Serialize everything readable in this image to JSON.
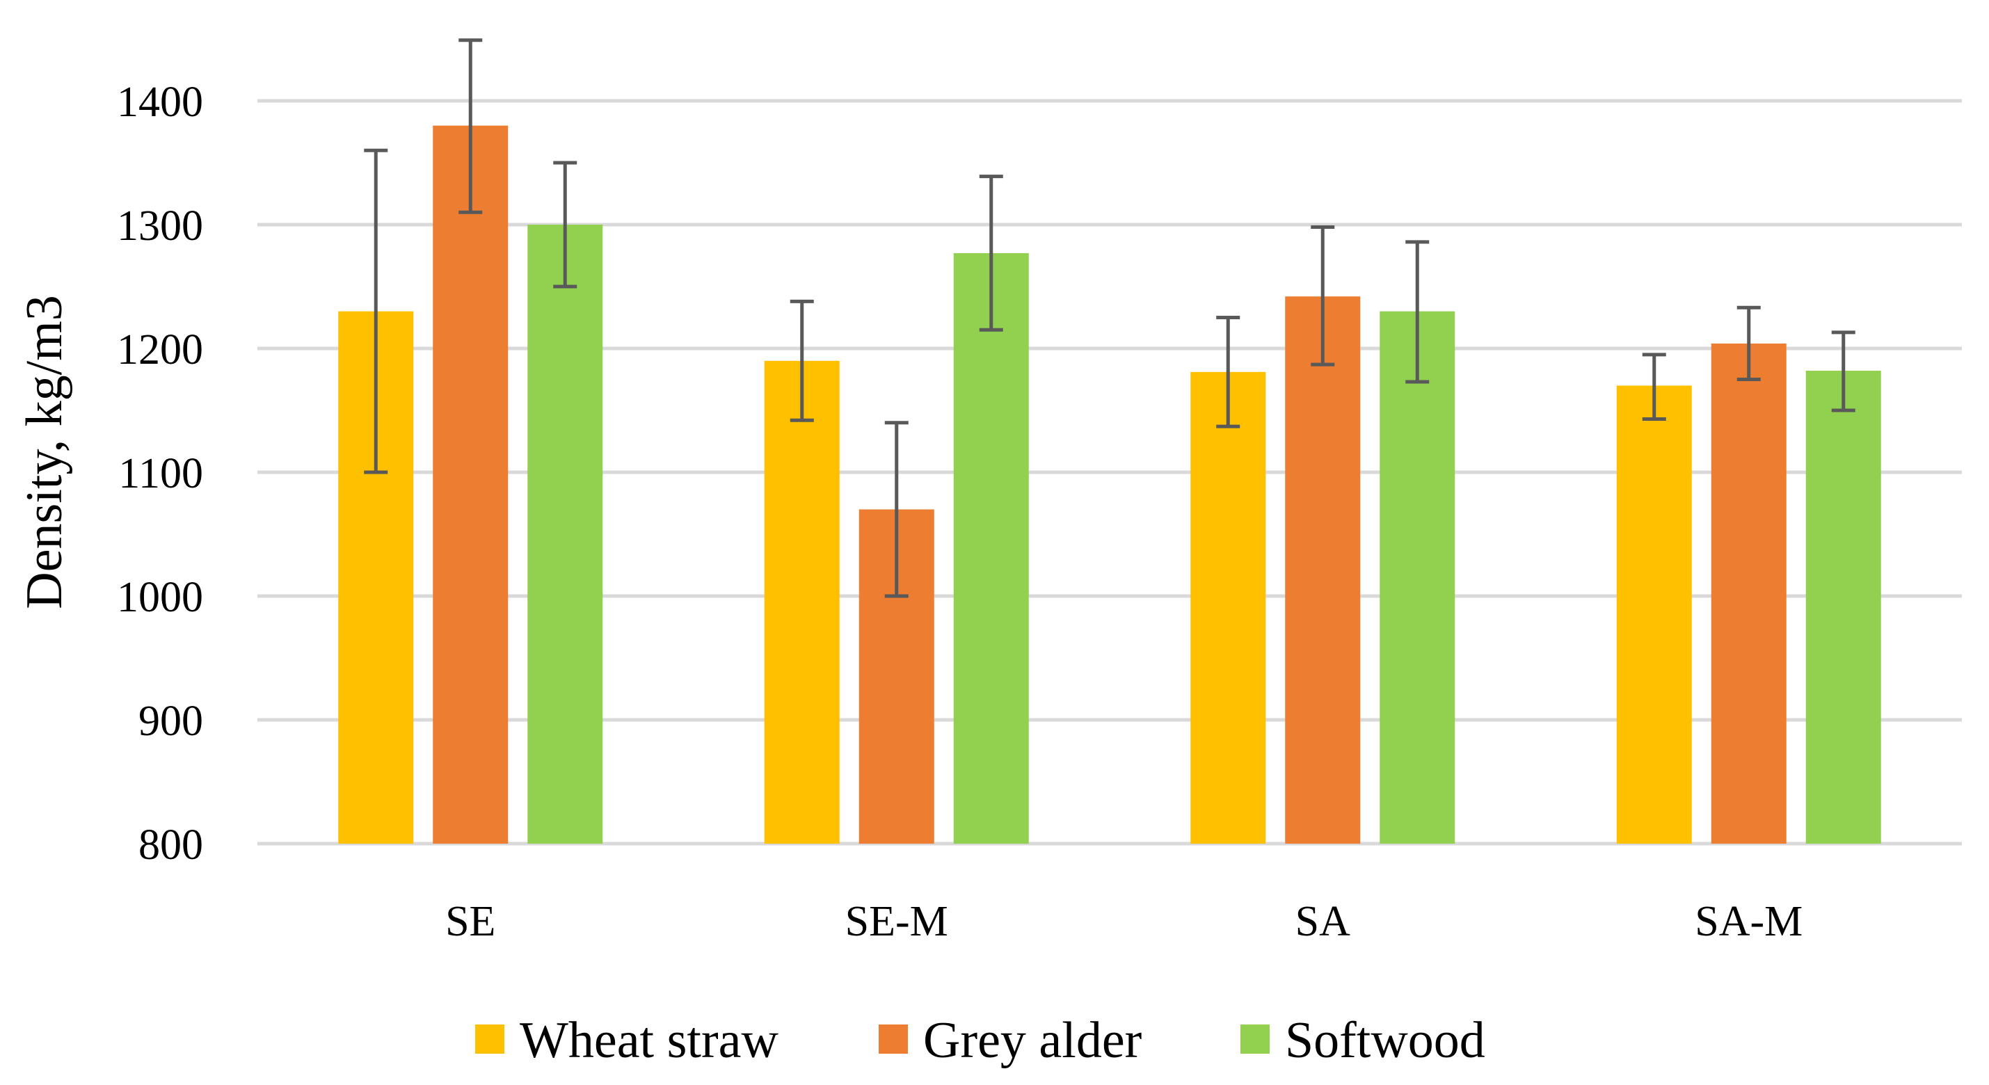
{
  "chart_data": {
    "type": "bar",
    "title": "",
    "xlabel": "",
    "ylabel": "Density, kg/m3",
    "ylim": [
      800,
      1400
    ],
    "yticks": [
      800,
      900,
      1000,
      1100,
      1200,
      1300,
      1400
    ],
    "grid": true,
    "legend_position": "bottom",
    "categories": [
      "SE",
      "SE-M",
      "SA",
      "SA-M"
    ],
    "series": [
      {
        "name": "Wheat straw",
        "color": "#FFC000",
        "values": [
          1230,
          1190,
          1181,
          1170
        ],
        "error_low": [
          1100,
          1142,
          1137,
          1143
        ],
        "error_high": [
          1360,
          1238,
          1225,
          1195
        ]
      },
      {
        "name": "Grey alder",
        "color": "#ED7D31",
        "values": [
          1380,
          1070,
          1242,
          1204
        ],
        "error_low": [
          1310,
          1000,
          1187,
          1175
        ],
        "error_high": [
          1449,
          1140,
          1298,
          1233
        ]
      },
      {
        "name": "Softwood",
        "color": "#92D050",
        "values": [
          1300,
          1277,
          1230,
          1182
        ],
        "error_low": [
          1250,
          1215,
          1173,
          1150
        ],
        "error_high": [
          1350,
          1339,
          1286,
          1213
        ]
      }
    ],
    "colors": {
      "grid": "#D9D9D9",
      "error_bar": "#595959"
    }
  }
}
